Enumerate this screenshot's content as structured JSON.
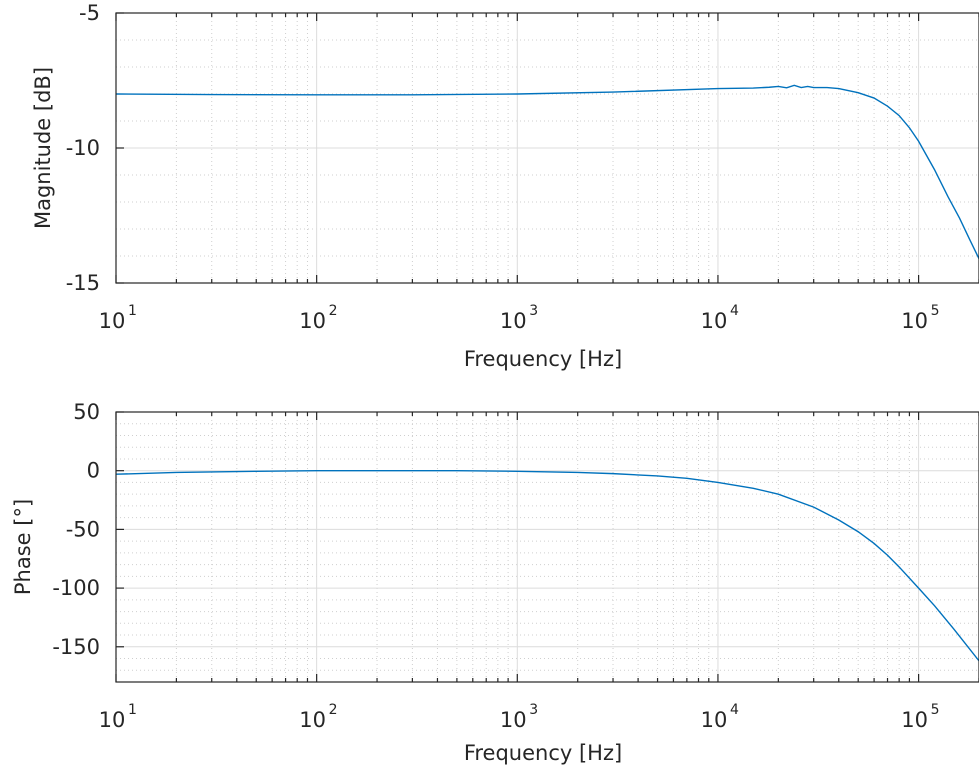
{
  "chart_data": [
    {
      "type": "line",
      "id": "magnitude",
      "xlabel": "Frequency [Hz]",
      "ylabel": "Magnitude [dB]",
      "xscale": "log",
      "xlim": [
        10,
        200000
      ],
      "ylim": [
        -15,
        -5
      ],
      "xticks": [
        10,
        100,
        1000,
        10000,
        100000
      ],
      "xtick_labels": [
        {
          "base": "10",
          "exp": "1"
        },
        {
          "base": "10",
          "exp": "2"
        },
        {
          "base": "10",
          "exp": "3"
        },
        {
          "base": "10",
          "exp": "4"
        },
        {
          "base": "10",
          "exp": "5"
        }
      ],
      "yticks": [
        -15,
        -10,
        -5
      ],
      "ytick_labels": [
        "-15",
        "-10",
        "-5"
      ],
      "grid": true,
      "minor_grid": true,
      "color": "#0072bd",
      "series": [
        {
          "x": [
            10,
            30,
            100,
            300,
            1000,
            3000,
            10000,
            15000,
            18000,
            20000,
            22000,
            24000,
            26000,
            28000,
            30000,
            35000,
            40000,
            50000,
            60000,
            70000,
            80000,
            90000,
            100000,
            120000,
            140000,
            160000,
            180000,
            200000
          ],
          "y": [
            -8.0,
            -8.02,
            -8.03,
            -8.03,
            -8.0,
            -7.93,
            -7.8,
            -7.78,
            -7.75,
            -7.72,
            -7.77,
            -7.68,
            -7.76,
            -7.72,
            -7.76,
            -7.76,
            -7.8,
            -7.95,
            -8.15,
            -8.45,
            -8.8,
            -9.25,
            -9.75,
            -10.8,
            -11.8,
            -12.6,
            -13.4,
            -14.1
          ]
        }
      ]
    },
    {
      "type": "line",
      "id": "phase",
      "xlabel": "Frequency [Hz]",
      "ylabel": "Phase [°]",
      "xscale": "log",
      "xlim": [
        10,
        200000
      ],
      "ylim": [
        -180,
        50
      ],
      "xticks": [
        10,
        100,
        1000,
        10000,
        100000
      ],
      "xtick_labels": [
        {
          "base": "10",
          "exp": "1"
        },
        {
          "base": "10",
          "exp": "2"
        },
        {
          "base": "10",
          "exp": "3"
        },
        {
          "base": "10",
          "exp": "4"
        },
        {
          "base": "10",
          "exp": "5"
        }
      ],
      "yticks": [
        -150,
        -100,
        -50,
        0,
        50
      ],
      "ytick_labels": [
        "-150",
        "-100",
        "-50",
        "0",
        "50"
      ],
      "grid": true,
      "minor_grid": true,
      "color": "#0072bd",
      "series": [
        {
          "x": [
            10,
            20,
            50,
            100,
            200,
            500,
            1000,
            2000,
            3000,
            5000,
            7000,
            10000,
            15000,
            20000,
            30000,
            40000,
            50000,
            60000,
            70000,
            80000,
            100000,
            120000,
            150000,
            200000
          ],
          "y": [
            -3,
            -1.5,
            -0.5,
            0,
            0,
            0,
            -0.5,
            -1.5,
            -2.5,
            -4.5,
            -6.5,
            -10,
            -15,
            -20,
            -31,
            -42,
            -52,
            -62,
            -72,
            -82,
            -100,
            -115,
            -135,
            -162
          ]
        }
      ]
    }
  ]
}
